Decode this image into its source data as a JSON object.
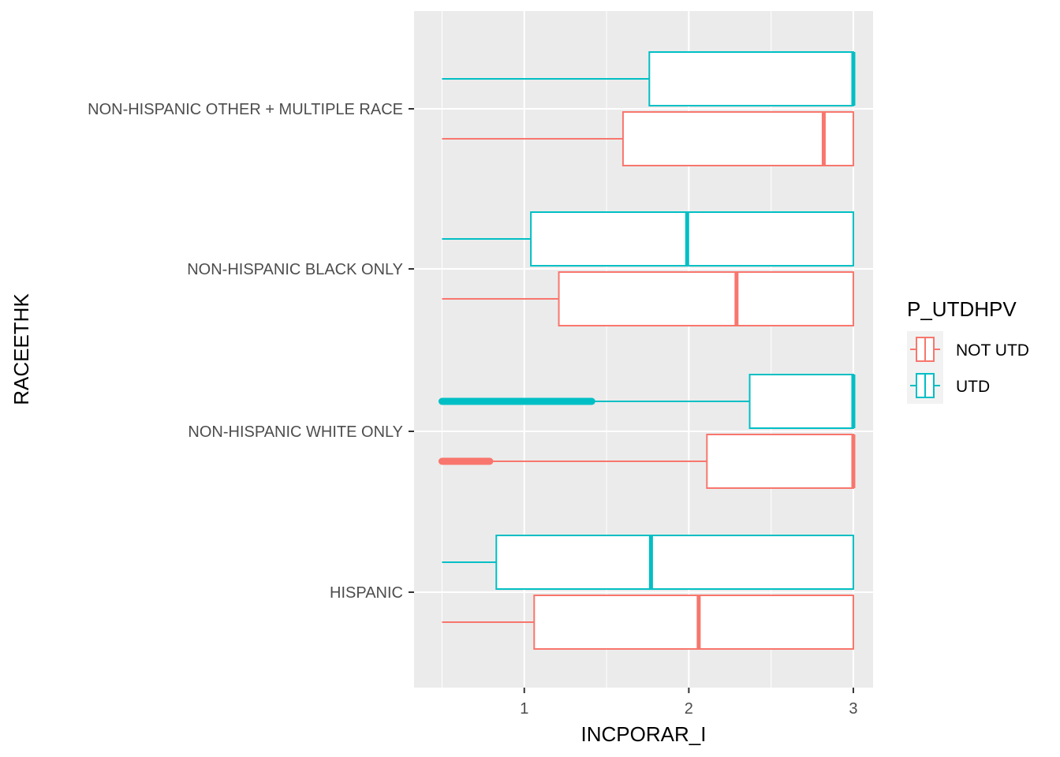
{
  "chart_data": {
    "type": "boxplot",
    "orientation": "horizontal",
    "xlabel": "INCPORAR_I",
    "ylabel": "RACEETHK",
    "xlim": [
      0.33,
      3.12
    ],
    "x_ticks": [
      1,
      2,
      3
    ],
    "categories": [
      "HISPANIC",
      "NON-HISPANIC WHITE ONLY",
      "NON-HISPANIC BLACK ONLY",
      "NON-HISPANIC OTHER + MULTIPLE RACE"
    ],
    "grid": true,
    "legend": {
      "title": "P_UTDHPV",
      "position": "right",
      "entries": [
        "NOT UTD",
        "UTD"
      ]
    },
    "colors": {
      "NOT UTD": "#F8766D",
      "UTD": "#00BFC4",
      "panel": "#EBEBEB",
      "grid": "#FFFFFF"
    },
    "series": [
      {
        "name": "NOT UTD",
        "boxes": [
          {
            "category": "HISPANIC",
            "min": 0.5,
            "q1": 1.06,
            "median": 2.06,
            "q3": 3.0,
            "max": 3.0,
            "outliers_range": null
          },
          {
            "category": "NON-HISPANIC WHITE ONLY",
            "min": 0.8,
            "q1": 2.11,
            "median": 3.0,
            "q3": 3.0,
            "max": 3.0,
            "outliers_range": [
              0.5,
              0.79
            ]
          },
          {
            "category": "NON-HISPANIC BLACK ONLY",
            "min": 0.5,
            "q1": 1.21,
            "median": 2.29,
            "q3": 3.0,
            "max": 3.0,
            "outliers_range": null
          },
          {
            "category": "NON-HISPANIC OTHER + MULTIPLE RACE",
            "min": 0.5,
            "q1": 1.6,
            "median": 2.82,
            "q3": 3.0,
            "max": 3.0,
            "outliers_range": null
          }
        ]
      },
      {
        "name": "UTD",
        "boxes": [
          {
            "category": "HISPANIC",
            "min": 0.5,
            "q1": 0.83,
            "median": 1.77,
            "q3": 3.0,
            "max": 3.0,
            "outliers_range": null
          },
          {
            "category": "NON-HISPANIC WHITE ONLY",
            "min": 1.42,
            "q1": 2.37,
            "median": 3.0,
            "q3": 3.0,
            "max": 3.0,
            "outliers_range": [
              0.5,
              1.41
            ]
          },
          {
            "category": "NON-HISPANIC BLACK ONLY",
            "min": 0.5,
            "q1": 1.04,
            "median": 1.99,
            "q3": 3.0,
            "max": 3.0,
            "outliers_range": null
          },
          {
            "category": "NON-HISPANIC OTHER + MULTIPLE RACE",
            "min": 0.5,
            "q1": 1.76,
            "median": 3.0,
            "q3": 3.0,
            "max": 3.0,
            "outliers_range": null
          }
        ]
      }
    ]
  }
}
